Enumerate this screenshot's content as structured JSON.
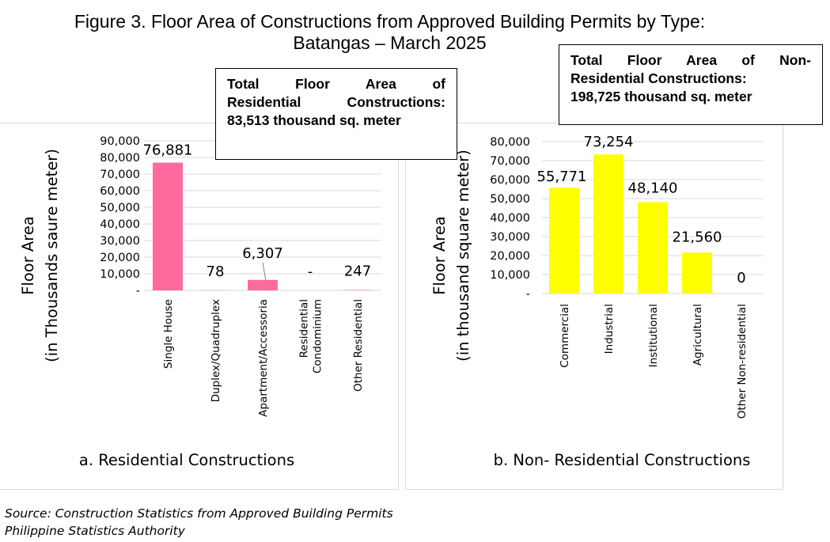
{
  "figure": {
    "title_line1": "Figure 3.  Floor Area of Constructions from Approved Building Permits by Type:",
    "title_line2": "Batangas – March 2025"
  },
  "callouts": {
    "residential": [
      "Total Floor Area of",
      "Residential Constructions:",
      "83,513 thousand sq. meter"
    ],
    "non_residential": [
      "Total Floor Area of Non-",
      "Residential Constructions:",
      "198,725 thousand sq. meter"
    ]
  },
  "source": {
    "line1": "Source: Construction Statistics from Approved Building Permits",
    "line2": "Philippine Statistics Authority"
  },
  "colors": {
    "residential_bar": "#ff6a9e",
    "non_residential_bar": "#ffff00",
    "gridline": "#d9d9d9"
  },
  "chart_data": [
    {
      "type": "bar",
      "title": "a. Residential Constructions",
      "ylabel": [
        "Floor Area",
        "(in Thousands saure meter)"
      ],
      "categories": [
        [
          "Single House"
        ],
        [
          "Duplex/Quadruplex"
        ],
        [
          "Apartment/Accessoria"
        ],
        [
          "Residential",
          "Condominium"
        ],
        [
          "Other Residential"
        ]
      ],
      "values": [
        76881,
        78,
        6307,
        0,
        247
      ],
      "data_labels": [
        "76,881",
        "78",
        "6,307",
        "-",
        "247"
      ],
      "yticks": [
        "-",
        "10,000",
        "20,000",
        "30,000",
        "40,000",
        "50,000",
        "60,000",
        "70,000",
        "80,000",
        "90,000"
      ],
      "ylim": [
        0,
        90000
      ],
      "grid": true
    },
    {
      "type": "bar",
      "title": "b. Non- Residential Constructions",
      "ylabel": [
        "Floor Area",
        "(in thousand square meter)"
      ],
      "categories": [
        [
          "Commercial"
        ],
        [
          "Industrial"
        ],
        [
          "Institutional"
        ],
        [
          "Agricultural"
        ],
        [
          "Other Non-residential"
        ]
      ],
      "values": [
        55771,
        73254,
        48140,
        21560,
        0
      ],
      "data_labels": [
        "55,771",
        "73,254",
        "48,140",
        "21,560",
        "0"
      ],
      "yticks": [
        "-",
        "10,000",
        "20,000",
        "30,000",
        "40,000",
        "50,000",
        "60,000",
        "70,000",
        "80,000"
      ],
      "ylim": [
        0,
        80000
      ],
      "grid": true
    }
  ]
}
